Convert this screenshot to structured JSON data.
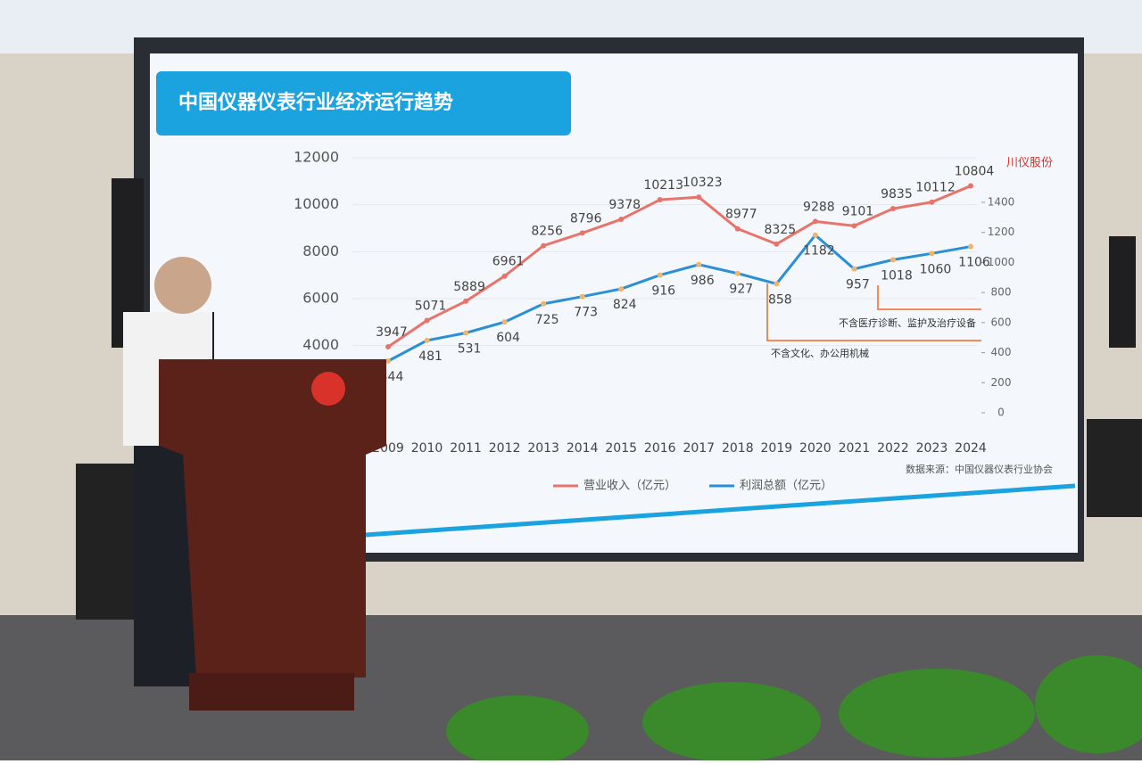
{
  "screen": {
    "logo": "川仪股份"
  },
  "chart_data": {
    "type": "line",
    "title": "中国仪器仪表行业经济运行趋势",
    "categories": [
      "2009",
      "2010",
      "2011",
      "2012",
      "2013",
      "2014",
      "2015",
      "2016",
      "2017",
      "2018",
      "2019",
      "2020",
      "2021",
      "2022",
      "2023",
      "2024"
    ],
    "series": [
      {
        "name": "营业收入（亿元）",
        "color": "#e8736b",
        "values": [
          3947,
          5071,
          5889,
          6961,
          8256,
          8796,
          9378,
          10213,
          10323,
          8977,
          8325,
          9288,
          9101,
          9835,
          10112,
          10804
        ]
      },
      {
        "name": "利润总额（亿元）",
        "color": "#2b8fd6",
        "axis": "y2",
        "values": [
          344,
          481,
          531,
          604,
          725,
          773,
          824,
          916,
          986,
          927,
          858,
          1182,
          957,
          1018,
          1060,
          1106
        ]
      }
    ],
    "ylim": [
      0,
      12000
    ],
    "yticks": [
      4000,
      6000,
      8000,
      10000,
      12000
    ],
    "y2lim": [
      0,
      1400
    ],
    "y2ticks": [
      0,
      200,
      400,
      600,
      800,
      1000,
      1200,
      1400
    ],
    "annotations": [
      "不含医疗诊断、监护及治疗设备",
      "不含文化、办公用机械"
    ],
    "source": "数据来源：中国仪器仪表行业协会"
  }
}
